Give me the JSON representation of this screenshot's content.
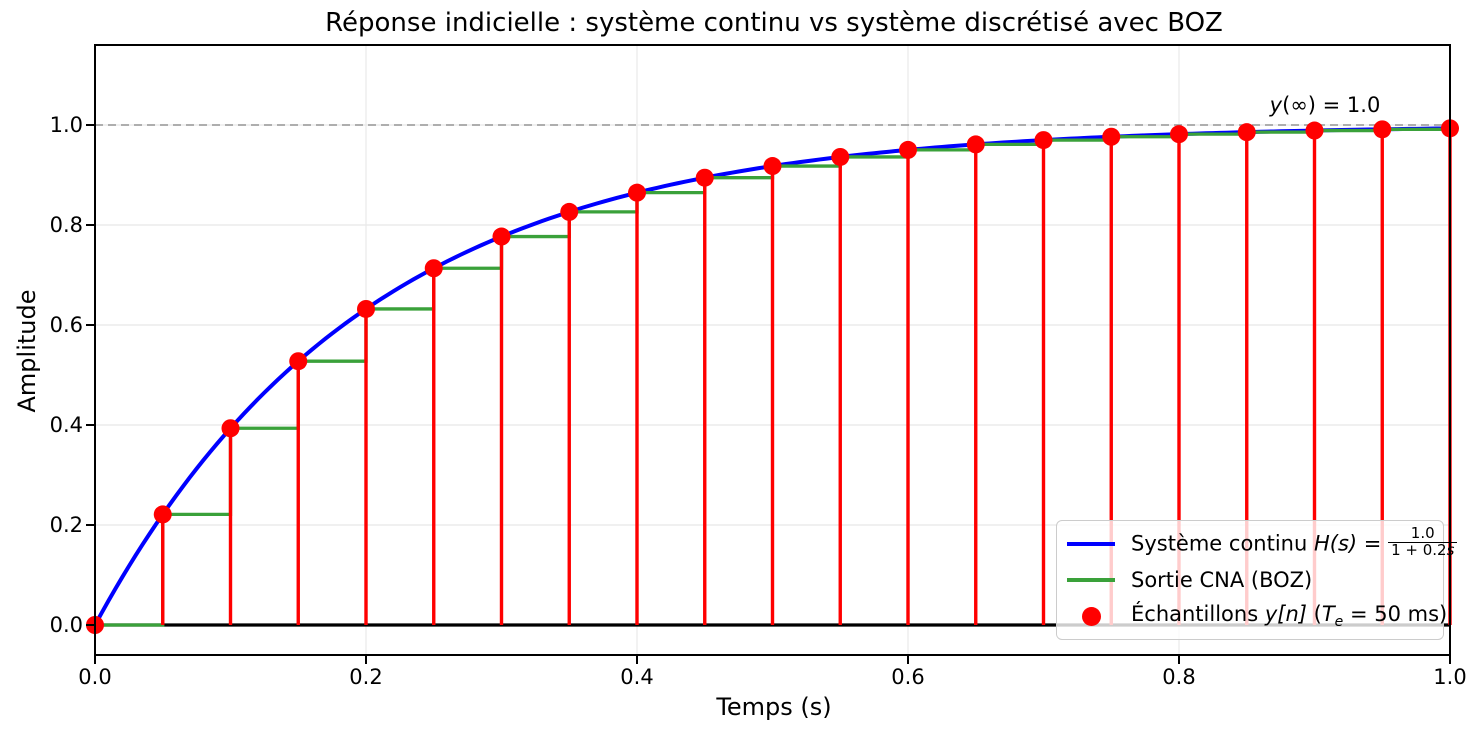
{
  "title": "Réponse indicielle : système continu vs système discrétisé avec BOZ",
  "axes": {
    "xlabel": "Temps (s)",
    "ylabel": "Amplitude",
    "x_tick_labels": [
      "0.0",
      "0.2",
      "0.4",
      "0.6",
      "0.8",
      "1.0"
    ],
    "y_tick_labels": [
      "0.0",
      "0.2",
      "0.4",
      "0.6",
      "0.8",
      "1.0"
    ]
  },
  "annotation": {
    "var": "y",
    "rest": "(∞) = 1.0"
  },
  "legend": {
    "continuous": {
      "prefix": "Système continu ",
      "math": "H(s) = ",
      "frac_num": "1.0",
      "frac_den_pre": "1 + 0.2",
      "frac_den_var": "s"
    },
    "zoh": {
      "label": "Sortie CNA (BOZ)"
    },
    "samples": {
      "prefix": "Échantillons ",
      "math_y": "y[n]",
      "paren": " (",
      "math_T": "T",
      "sub": "e",
      "suffix": " = 50 ms)"
    }
  },
  "chart_data": {
    "type": "line",
    "title": "Réponse indicielle : système continu vs système discrétisé avec BOZ",
    "xlabel": "Temps (s)",
    "ylabel": "Amplitude",
    "xlim": [
      0.0,
      1.0
    ],
    "ylim": [
      -0.06,
      1.16
    ],
    "x_ticks": [
      0.0,
      0.2,
      0.4,
      0.6,
      0.8,
      1.0
    ],
    "y_ticks": [
      0.0,
      0.2,
      0.4,
      0.6,
      0.8,
      1.0
    ],
    "grid": true,
    "grid_color": "#e8e8e8",
    "legend_position": "lower right",
    "target_line": {
      "y": 1.0,
      "style": "dashed",
      "color": "#a3a3a3",
      "annotation": "y(∞) = 1.0"
    },
    "zero_line": {
      "y": 0.0,
      "color": "#000000"
    },
    "sample_period_s": 0.05,
    "series": [
      {
        "name": "Système continu H(s) = 1.0 / (1 + 0.2s)",
        "type": "curve",
        "color": "#0000ff",
        "model": "y(t) = 1 − exp(−t / 0.2)",
        "gain": 1.0,
        "tau": 0.2
      },
      {
        "name": "Sortie CNA (BOZ)",
        "type": "step-post",
        "color": "#3aa13a"
      },
      {
        "name": "Échantillons y[n] (Te = 50 ms)",
        "type": "stem",
        "color": "#ff0000"
      }
    ],
    "samples": {
      "t": [
        0.0,
        0.05,
        0.1,
        0.15,
        0.2,
        0.25,
        0.3,
        0.35,
        0.4,
        0.45,
        0.5,
        0.55,
        0.6,
        0.65,
        0.7,
        0.75,
        0.8,
        0.85,
        0.9,
        0.95,
        1.0
      ],
      "y": [
        0.0,
        0.2212,
        0.3935,
        0.5276,
        0.6321,
        0.7135,
        0.7769,
        0.8262,
        0.8647,
        0.8946,
        0.9179,
        0.9361,
        0.9502,
        0.9612,
        0.9698,
        0.9765,
        0.9817,
        0.9857,
        0.9889,
        0.9913,
        0.9933
      ]
    }
  }
}
